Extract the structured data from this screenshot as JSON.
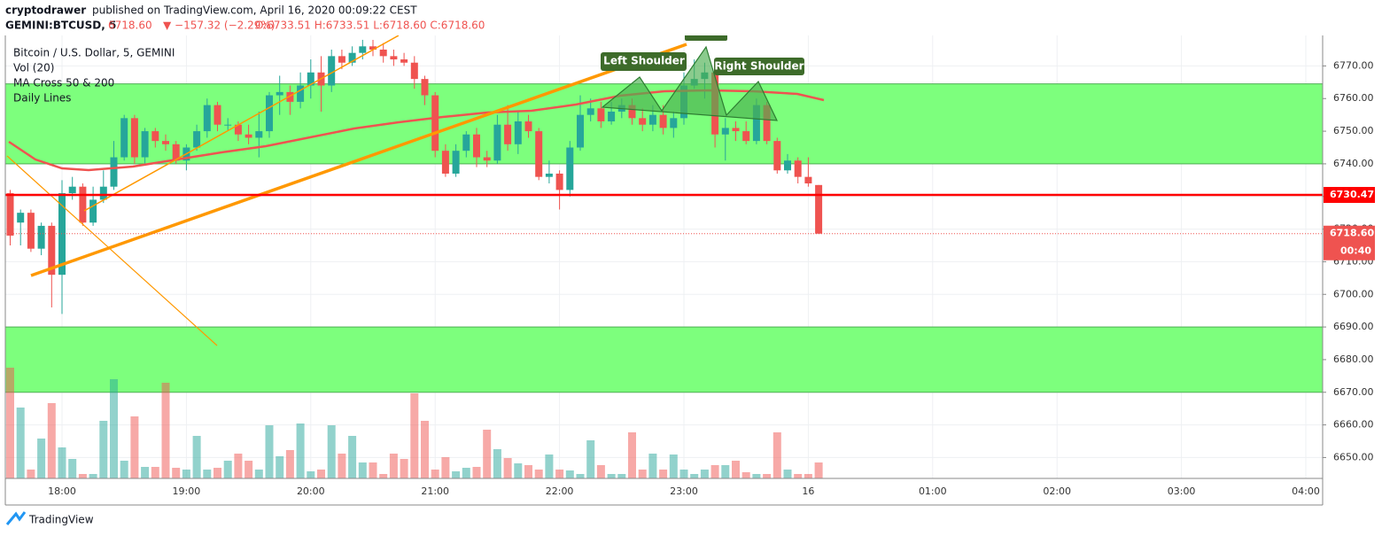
{
  "header": {
    "author": "cryptodrawer",
    "published": "published on TradingView.com, April 16, 2020 00:09:22 CEST",
    "symbol": "GEMINI:BTCUSD, 5",
    "price": "6718.60",
    "change": "▼ −157.32 (−2.29%)",
    "ohlc": "O:6733.51 H:6733.51 L:6718.60 C:6718.60"
  },
  "footer": {
    "brand": "TradingView"
  },
  "chart_data": {
    "type": "candlestick",
    "legend": [
      "Bitcoin / U.S. Dollar, 5, GEMINI",
      "Vol (20)",
      "MA Cross 50 & 200",
      "Daily Lines"
    ],
    "up_color": "#26a69a",
    "down_color": "#ef5350",
    "open": [
      6731,
      6722,
      6725,
      6714,
      6721,
      6706,
      6731,
      6733,
      6722,
      6729,
      6733,
      6742,
      6754,
      6742,
      6750,
      6747,
      6746,
      6741,
      6745,
      6750,
      6758,
      6752,
      6752,
      6749,
      6748,
      6750,
      6761,
      6762,
      6759,
      6764,
      6768,
      6764,
      6773,
      6771,
      6774,
      6776,
      6775,
      6773,
      6772,
      6771,
      6766,
      6761,
      6744,
      6737,
      6744,
      6749,
      6742,
      6741,
      6752,
      6746,
      6753,
      6750,
      6736,
      6737,
      6732,
      6745,
      6755,
      6757,
      6753,
      6756,
      6758,
      6754,
      6752,
      6755,
      6751,
      6754,
      6764,
      6766,
      6768,
      6749,
      6751,
      6750,
      6747,
      6758,
      6747,
      6738,
      6741,
      6736,
      6733.51
    ],
    "high": [
      6732,
      6726,
      6726,
      6722,
      6722,
      6735,
      6736,
      6734,
      6733,
      6738,
      6747,
      6755,
      6755,
      6751,
      6751,
      6749,
      6747,
      6746,
      6752,
      6760,
      6759,
      6754,
      6753,
      6752,
      6756,
      6762,
      6767,
      6764,
      6768,
      6772,
      6773,
      6775,
      6775,
      6776,
      6778,
      6778,
      6777,
      6775,
      6774,
      6773,
      6767,
      6762,
      6746,
      6746,
      6750,
      6751,
      6744,
      6755,
      6758,
      6756,
      6755,
      6751,
      6741,
      6738,
      6747,
      6761,
      6760,
      6759,
      6759,
      6760,
      6760,
      6757,
      6758,
      6758,
      6756,
      6768,
      6772,
      6771,
      6769,
      6754,
      6753,
      6753,
      6760,
      6759,
      6748,
      6743,
      6742,
      6742,
      6733.51
    ],
    "low": [
      6715,
      6715,
      6713,
      6712,
      6696,
      6694,
      6729,
      6721,
      6721,
      6728,
      6732,
      6741,
      6740,
      6740,
      6745,
      6744,
      6740,
      6738,
      6744,
      6748,
      6750,
      6750,
      6747,
      6746,
      6742,
      6748,
      6755,
      6755,
      6757,
      6760,
      6756,
      6762,
      6769,
      6770,
      6772,
      6773,
      6771,
      6770,
      6770,
      6763,
      6758,
      6742,
      6736,
      6736,
      6742,
      6739,
      6739,
      6740,
      6744,
      6743,
      6748,
      6735,
      6734,
      6726,
      6730,
      6744,
      6753,
      6751,
      6752,
      6754,
      6752,
      6750,
      6750,
      6749,
      6748,
      6752,
      6763,
      6760,
      6745,
      6741,
      6747,
      6746,
      6746,
      6746,
      6737,
      6737,
      6734,
      6733,
      6718.6
    ],
    "close": [
      6718,
      6725,
      6714,
      6721,
      6706,
      6731,
      6733,
      6722,
      6729,
      6733,
      6742,
      6754,
      6742,
      6750,
      6747,
      6746,
      6741,
      6745,
      6750,
      6758,
      6752,
      6752,
      6749,
      6748,
      6750,
      6761,
      6762,
      6759,
      6764,
      6768,
      6764,
      6773,
      6771,
      6774,
      6776,
      6775,
      6773,
      6772,
      6771,
      6766,
      6761,
      6744,
      6737,
      6744,
      6749,
      6742,
      6741,
      6752,
      6746,
      6753,
      6750,
      6736,
      6737,
      6732,
      6745,
      6755,
      6757,
      6753,
      6756,
      6758,
      6754,
      6752,
      6755,
      6751,
      6754,
      6764,
      6766,
      6768,
      6749,
      6751,
      6750,
      6747,
      6758,
      6747,
      6738,
      6741,
      6736,
      6734,
      6718.6
    ],
    "volume": [
      125,
      80,
      10,
      45,
      85,
      35,
      22,
      5,
      5,
      65,
      112,
      20,
      70,
      13,
      13,
      108,
      12,
      10,
      48,
      10,
      12,
      20,
      28,
      20,
      10,
      60,
      25,
      32,
      62,
      8,
      10,
      60,
      28,
      48,
      18,
      18,
      5,
      28,
      22,
      96,
      65,
      10,
      24,
      8,
      12,
      13,
      55,
      33,
      23,
      17,
      15,
      10,
      27,
      10,
      9,
      5,
      43,
      15,
      5,
      5,
      52,
      10,
      28,
      10,
      27,
      10,
      5,
      10,
      15,
      15,
      20,
      7,
      5,
      5,
      52,
      10,
      5,
      5,
      18
    ],
    "ylim": [
      6643.6,
      6778.8
    ],
    "yticks": [
      {
        "value": 6650,
        "label": "6650.00"
      },
      {
        "value": 6660,
        "label": "6660.00"
      },
      {
        "value": 6670,
        "label": "6670.00"
      },
      {
        "value": 6680,
        "label": "6680.00"
      },
      {
        "value": 6690,
        "label": "6690.00"
      },
      {
        "value": 6700,
        "label": "6700.00"
      },
      {
        "value": 6710,
        "label": "6710.00"
      },
      {
        "value": 6720,
        "label": "6720.00"
      },
      {
        "value": 6730,
        "label": "6730.00"
      },
      {
        "value": 6740,
        "label": "6740.00"
      },
      {
        "value": 6750,
        "label": "6750.00"
      },
      {
        "value": 6760,
        "label": "6760.00"
      },
      {
        "value": 6770,
        "label": "6770.00"
      }
    ],
    "xticks": [
      "18:00",
      "19:00",
      "20:00",
      "21:00",
      "22:00",
      "23:00",
      "16",
      "01:00",
      "02:00",
      "03:00",
      "04:00"
    ],
    "grid": true,
    "zones": [
      {
        "from": 6740,
        "to": 6764.5
      },
      {
        "from": 6670,
        "to": 6690
      }
    ],
    "horizontal_line": {
      "value": 6730.47,
      "label": "6730.47",
      "color": "#ff0000"
    },
    "last_price": {
      "value": 6718.6,
      "label": "6718.60"
    },
    "countdown": "00:40",
    "annotations": [
      "Left Shoulder",
      "Right Shoulder"
    ]
  }
}
